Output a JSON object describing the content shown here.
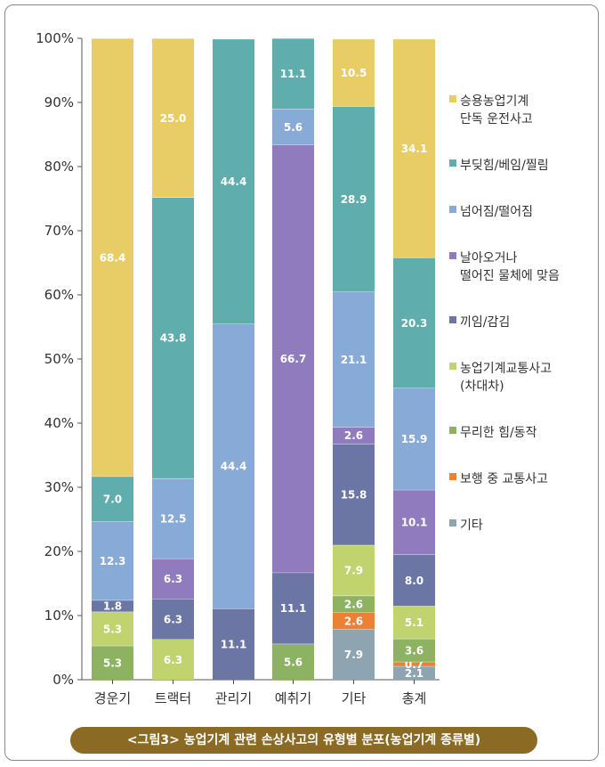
{
  "chart_data": {
    "type": "bar",
    "stacked": true,
    "categories": [
      "경운기",
      "트랙터",
      "관리기",
      "예취기",
      "기타",
      "총계"
    ],
    "yticks": [
      "0%",
      "10%",
      "20%",
      "30%",
      "40%",
      "50%",
      "60%",
      "70%",
      "80%",
      "90%",
      "100%"
    ],
    "ylim": [
      0,
      100
    ],
    "series": [
      {
        "name": "기타",
        "legend": [
          "기타"
        ],
        "color": "#8fa4b1",
        "values": [
          null,
          null,
          null,
          null,
          7.9,
          2.1
        ]
      },
      {
        "name": "보행 중 교통사고",
        "legend": [
          "보행 중 교통사고"
        ],
        "color": "#ec8035",
        "values": [
          null,
          null,
          null,
          null,
          2.6,
          0.7
        ]
      },
      {
        "name": "무리한 힘/동작",
        "legend": [
          "무리한 힘/동작"
        ],
        "color": "#8cb262",
        "values": [
          5.3,
          null,
          null,
          5.6,
          2.6,
          3.6
        ]
      },
      {
        "name": "농업기계교통사고 (차대차)",
        "legend": [
          "농업기계교통사고",
          "(차대차)"
        ],
        "color": "#c1d36f",
        "values": [
          5.3,
          6.3,
          null,
          null,
          7.9,
          5.1
        ]
      },
      {
        "name": "끼임/감김",
        "legend": [
          "끼임/감김"
        ],
        "color": "#6b76a4",
        "values": [
          1.8,
          6.3,
          11.1,
          11.1,
          15.8,
          8.0
        ]
      },
      {
        "name": "날아오거나 떨어진 물체에 맞음",
        "legend": [
          "날아오거나",
          "떨어진 물체에 맞음"
        ],
        "color": "#8f7bbd",
        "values": [
          null,
          6.3,
          null,
          66.7,
          2.6,
          10.1
        ]
      },
      {
        "name": "넘어짐/떨어짐",
        "legend": [
          "넘어짐/떨어짐"
        ],
        "color": "#88aad6",
        "values": [
          12.3,
          12.5,
          44.4,
          5.6,
          21.1,
          15.9
        ]
      },
      {
        "name": "부딪힘/베임/찔림",
        "legend": [
          "부딪힘/베임/찔림"
        ],
        "color": "#5fadad",
        "values": [
          7.0,
          43.8,
          44.4,
          11.1,
          28.9,
          20.3
        ]
      },
      {
        "name": "승용농업기계 단독 운전사고",
        "legend": [
          "승용농업기계",
          "단독 운전사고"
        ],
        "color": "#e8cd66",
        "values": [
          68.4,
          25.0,
          null,
          null,
          10.5,
          34.1
        ]
      }
    ],
    "caption": "<그림3> 농업기계 관련 손상사고의 유형별 분포(농업기계 종류별)"
  }
}
